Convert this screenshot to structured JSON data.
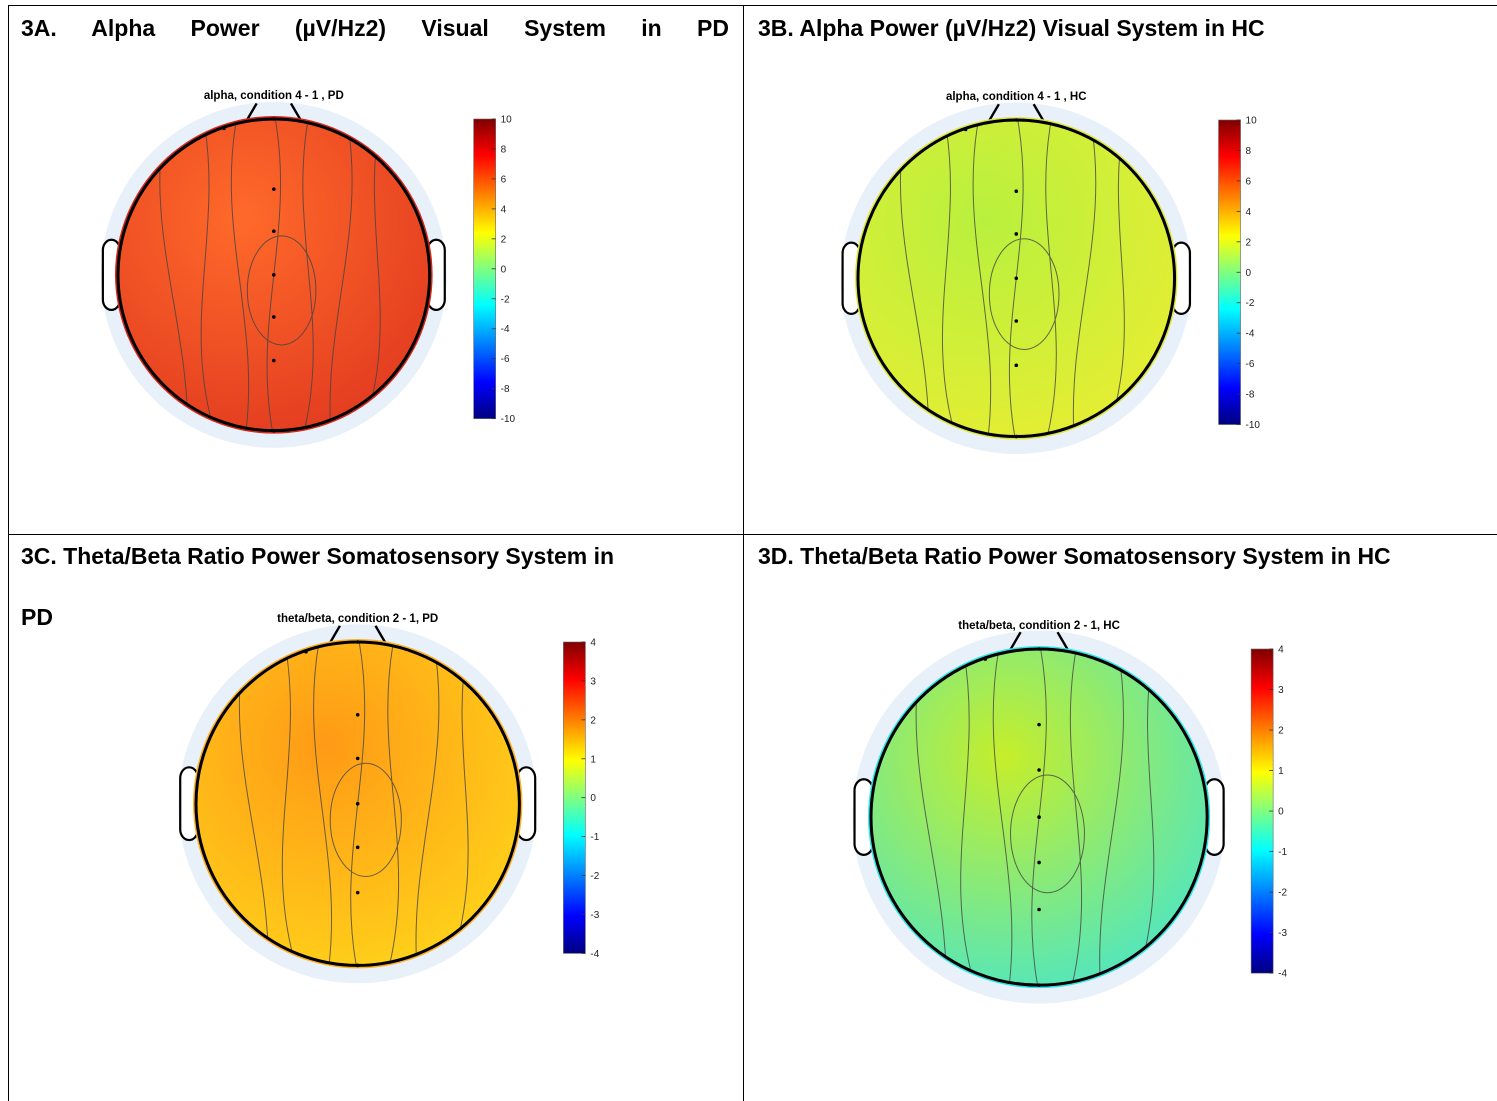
{
  "panels": [
    {
      "id": "3A",
      "heading": "3A.  Alpha  Power  (µV/Hz2)  Visual  System  in  PD",
      "plot_title": "alpha,  condition 4 - 1 ,  PD",
      "colorbar_ticks": [
        "10",
        "8",
        "6",
        "4",
        "2",
        "0",
        "-2",
        "-4",
        "-6",
        "-8",
        "-10"
      ],
      "base_color": "#e23b20",
      "accent_color": "#ff6a2a",
      "rim_color": "#d6271c"
    },
    {
      "id": "3B",
      "heading": "3B. Alpha Power (µV/Hz2) Visual System in HC",
      "plot_title": "alpha,  condition 4 - 1 ,  HC",
      "colorbar_ticks": [
        "10",
        "8",
        "6",
        "4",
        "2",
        "0",
        "-2",
        "-4",
        "-6",
        "-8",
        "-10"
      ],
      "base_color": "#e6ee32",
      "accent_color": "#b8f03e",
      "rim_color": "#dfe83a"
    },
    {
      "id": "3C",
      "heading_line1": "3C. Theta/Beta Ratio Power Somatosensory System in",
      "heading_line2": "PD",
      "plot_title": "theta/beta, condition 2 - 1, PD",
      "colorbar_ticks": [
        "4",
        "3",
        "2",
        "1",
        "0",
        "-1",
        "-2",
        "-3",
        "-4"
      ],
      "base_color": "#ffd21a",
      "accent_color": "#ff9a16",
      "rim_color": "#ffb020"
    },
    {
      "id": "3D",
      "heading": "3D. Theta/Beta Ratio Power Somatosensory System in HC",
      "plot_title": "theta/beta, condition 2 - 1, HC",
      "colorbar_ticks": [
        "4",
        "3",
        "2",
        "1",
        "0",
        "-1",
        "-2",
        "-3",
        "-4"
      ],
      "base_color": "#4fe6c2",
      "accent_color": "#c6ee2a",
      "rim_color": "#2fe6e6"
    }
  ],
  "colors": {
    "jet_top": "#7f0000",
    "jet_red": "#ff0000",
    "jet_yellow": "#ffff00",
    "jet_cyan": "#00ffff",
    "jet_blue": "#0000ff",
    "jet_bottom": "#00007f",
    "halo": "#e8f0fa"
  }
}
